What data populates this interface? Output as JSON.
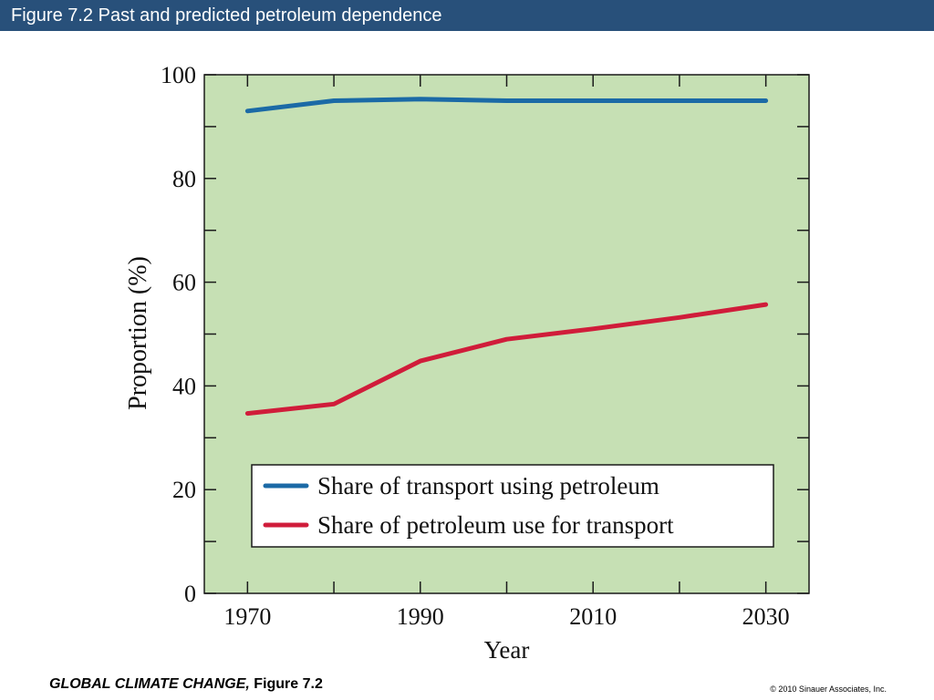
{
  "header": {
    "title": "Figure 7.2  Past and predicted petroleum dependence"
  },
  "footer": {
    "book_title": "GLOBAL CLIMATE CHANGE,",
    "figure_ref": " Figure 7.2",
    "copyright": "© 2010 Sinauer Associates, Inc."
  },
  "colors": {
    "plot_background": "#c6e0b4",
    "header_background": "#28507a",
    "series_transport": "#1b6aa6",
    "series_petroleum": "#d01c3a"
  },
  "chart_data": {
    "type": "line",
    "title": "",
    "xlabel": "Year",
    "ylabel": "Proportion (%)",
    "xlim": [
      1965,
      2035
    ],
    "ylim": [
      0,
      100
    ],
    "x_ticks": [
      1970,
      1990,
      2010,
      2030
    ],
    "x_minor_ticks": [
      1970,
      1980,
      1990,
      2000,
      2010,
      2020,
      2030
    ],
    "y_ticks": [
      0,
      20,
      40,
      60,
      80,
      100
    ],
    "y_minor_ticks": [
      0,
      10,
      20,
      30,
      40,
      50,
      60,
      70,
      80,
      90,
      100
    ],
    "grid": false,
    "legend": {
      "position": "bottom-right"
    },
    "x": [
      1970,
      1980,
      1990,
      2000,
      2010,
      2020,
      2030
    ],
    "series": [
      {
        "name": "Share of transport using petroleum",
        "color": "#1b6aa6",
        "values": [
          93,
          95,
          95.3,
          95,
          95,
          95,
          95
        ]
      },
      {
        "name": "Share of petroleum use for transport",
        "color": "#d01c3a",
        "values": [
          34.7,
          36.5,
          44.8,
          49,
          51,
          53.2,
          55.7
        ]
      }
    ]
  }
}
